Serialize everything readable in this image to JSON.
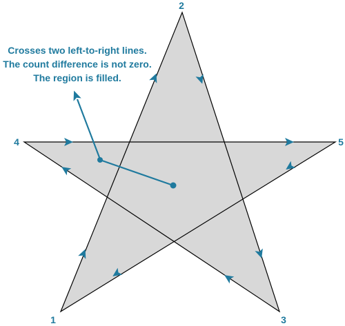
{
  "annotation": {
    "lines": [
      "Crosses two left-to-right lines.",
      "The count difference is not zero.",
      "The region is filled."
    ]
  },
  "vertices": [
    {
      "id": "v1",
      "label": "1"
    },
    {
      "id": "v2",
      "label": "2"
    },
    {
      "id": "v3",
      "label": "3"
    },
    {
      "id": "v4",
      "label": "4"
    },
    {
      "id": "v5",
      "label": "5"
    }
  ],
  "path_order": [
    "1",
    "2",
    "3",
    "4",
    "5",
    "1"
  ],
  "colors": {
    "fill": "#d8d8d8",
    "stroke": "#000000",
    "accent": "#1f7a9e"
  }
}
